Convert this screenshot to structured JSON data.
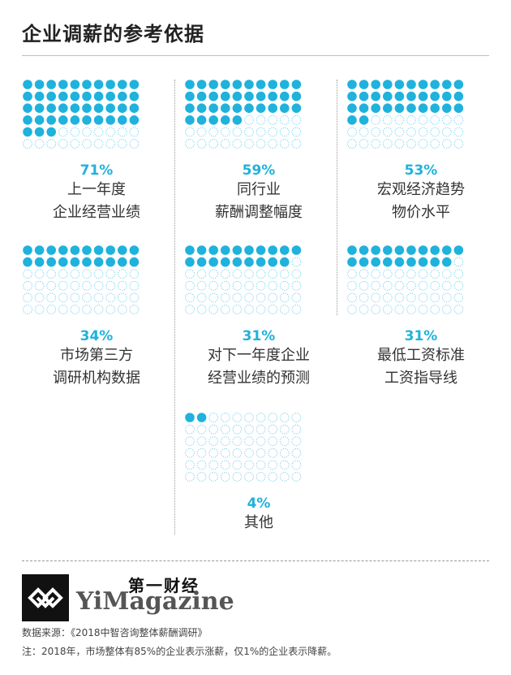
{
  "title": "企业调薪的参考依据",
  "chart_data": {
    "type": "waffle",
    "unit": "%",
    "items": [
      {
        "value": 71,
        "label_line1": "上一年度",
        "label_line2": "企业经营业绩"
      },
      {
        "value": 59,
        "label_line1": "同行业",
        "label_line2": "薪酬调整幅度"
      },
      {
        "value": 53,
        "label_line1": "宏观经济趋势",
        "label_line2": "物价水平"
      },
      {
        "value": 34,
        "label_line1": "市场第三方",
        "label_line2": "调研机构数据"
      },
      {
        "value": 31,
        "label_line1": "对下一年度企业",
        "label_line2": "经营业绩的预测"
      },
      {
        "value": 31,
        "label_line1": "最低工资标准",
        "label_line2": "工资指导线"
      },
      {
        "value": 4,
        "label_line1": "其他",
        "label_line2": ""
      }
    ]
  },
  "items": [
    {
      "pct": "71%",
      "label_line1": "上一年度",
      "label_line2": "企业经营业绩"
    },
    {
      "pct": "59%",
      "label_line1": "同行业",
      "label_line2": "薪酬调整幅度"
    },
    {
      "pct": "53%",
      "label_line1": "宏观经济趋势",
      "label_line2": "物价水平"
    },
    {
      "pct": "34%",
      "label_line1": "市场第三方",
      "label_line2": "调研机构数据"
    },
    {
      "pct": "31%",
      "label_line1": "对下一年度企业",
      "label_line2": "经营业绩的预测"
    },
    {
      "pct": "31%",
      "label_line1": "最低工资标准",
      "label_line2": "工资指导线"
    },
    {
      "pct": "4%",
      "label_line1": "其他",
      "label_line2": ""
    }
  ],
  "colors": {
    "filled": "#1fb2dc",
    "empty_outline": "#7fd0ea",
    "accent_text": "#1fb2dc"
  },
  "footer": {
    "brand_cn": "第一财经",
    "brand_en": "YiMagazine",
    "source": "数据来源：《2018中智咨询整体薪酬调研》",
    "note": "注：2018年，市场整体有85%的企业表示涨薪，仅1%的企业表示降薪。"
  }
}
